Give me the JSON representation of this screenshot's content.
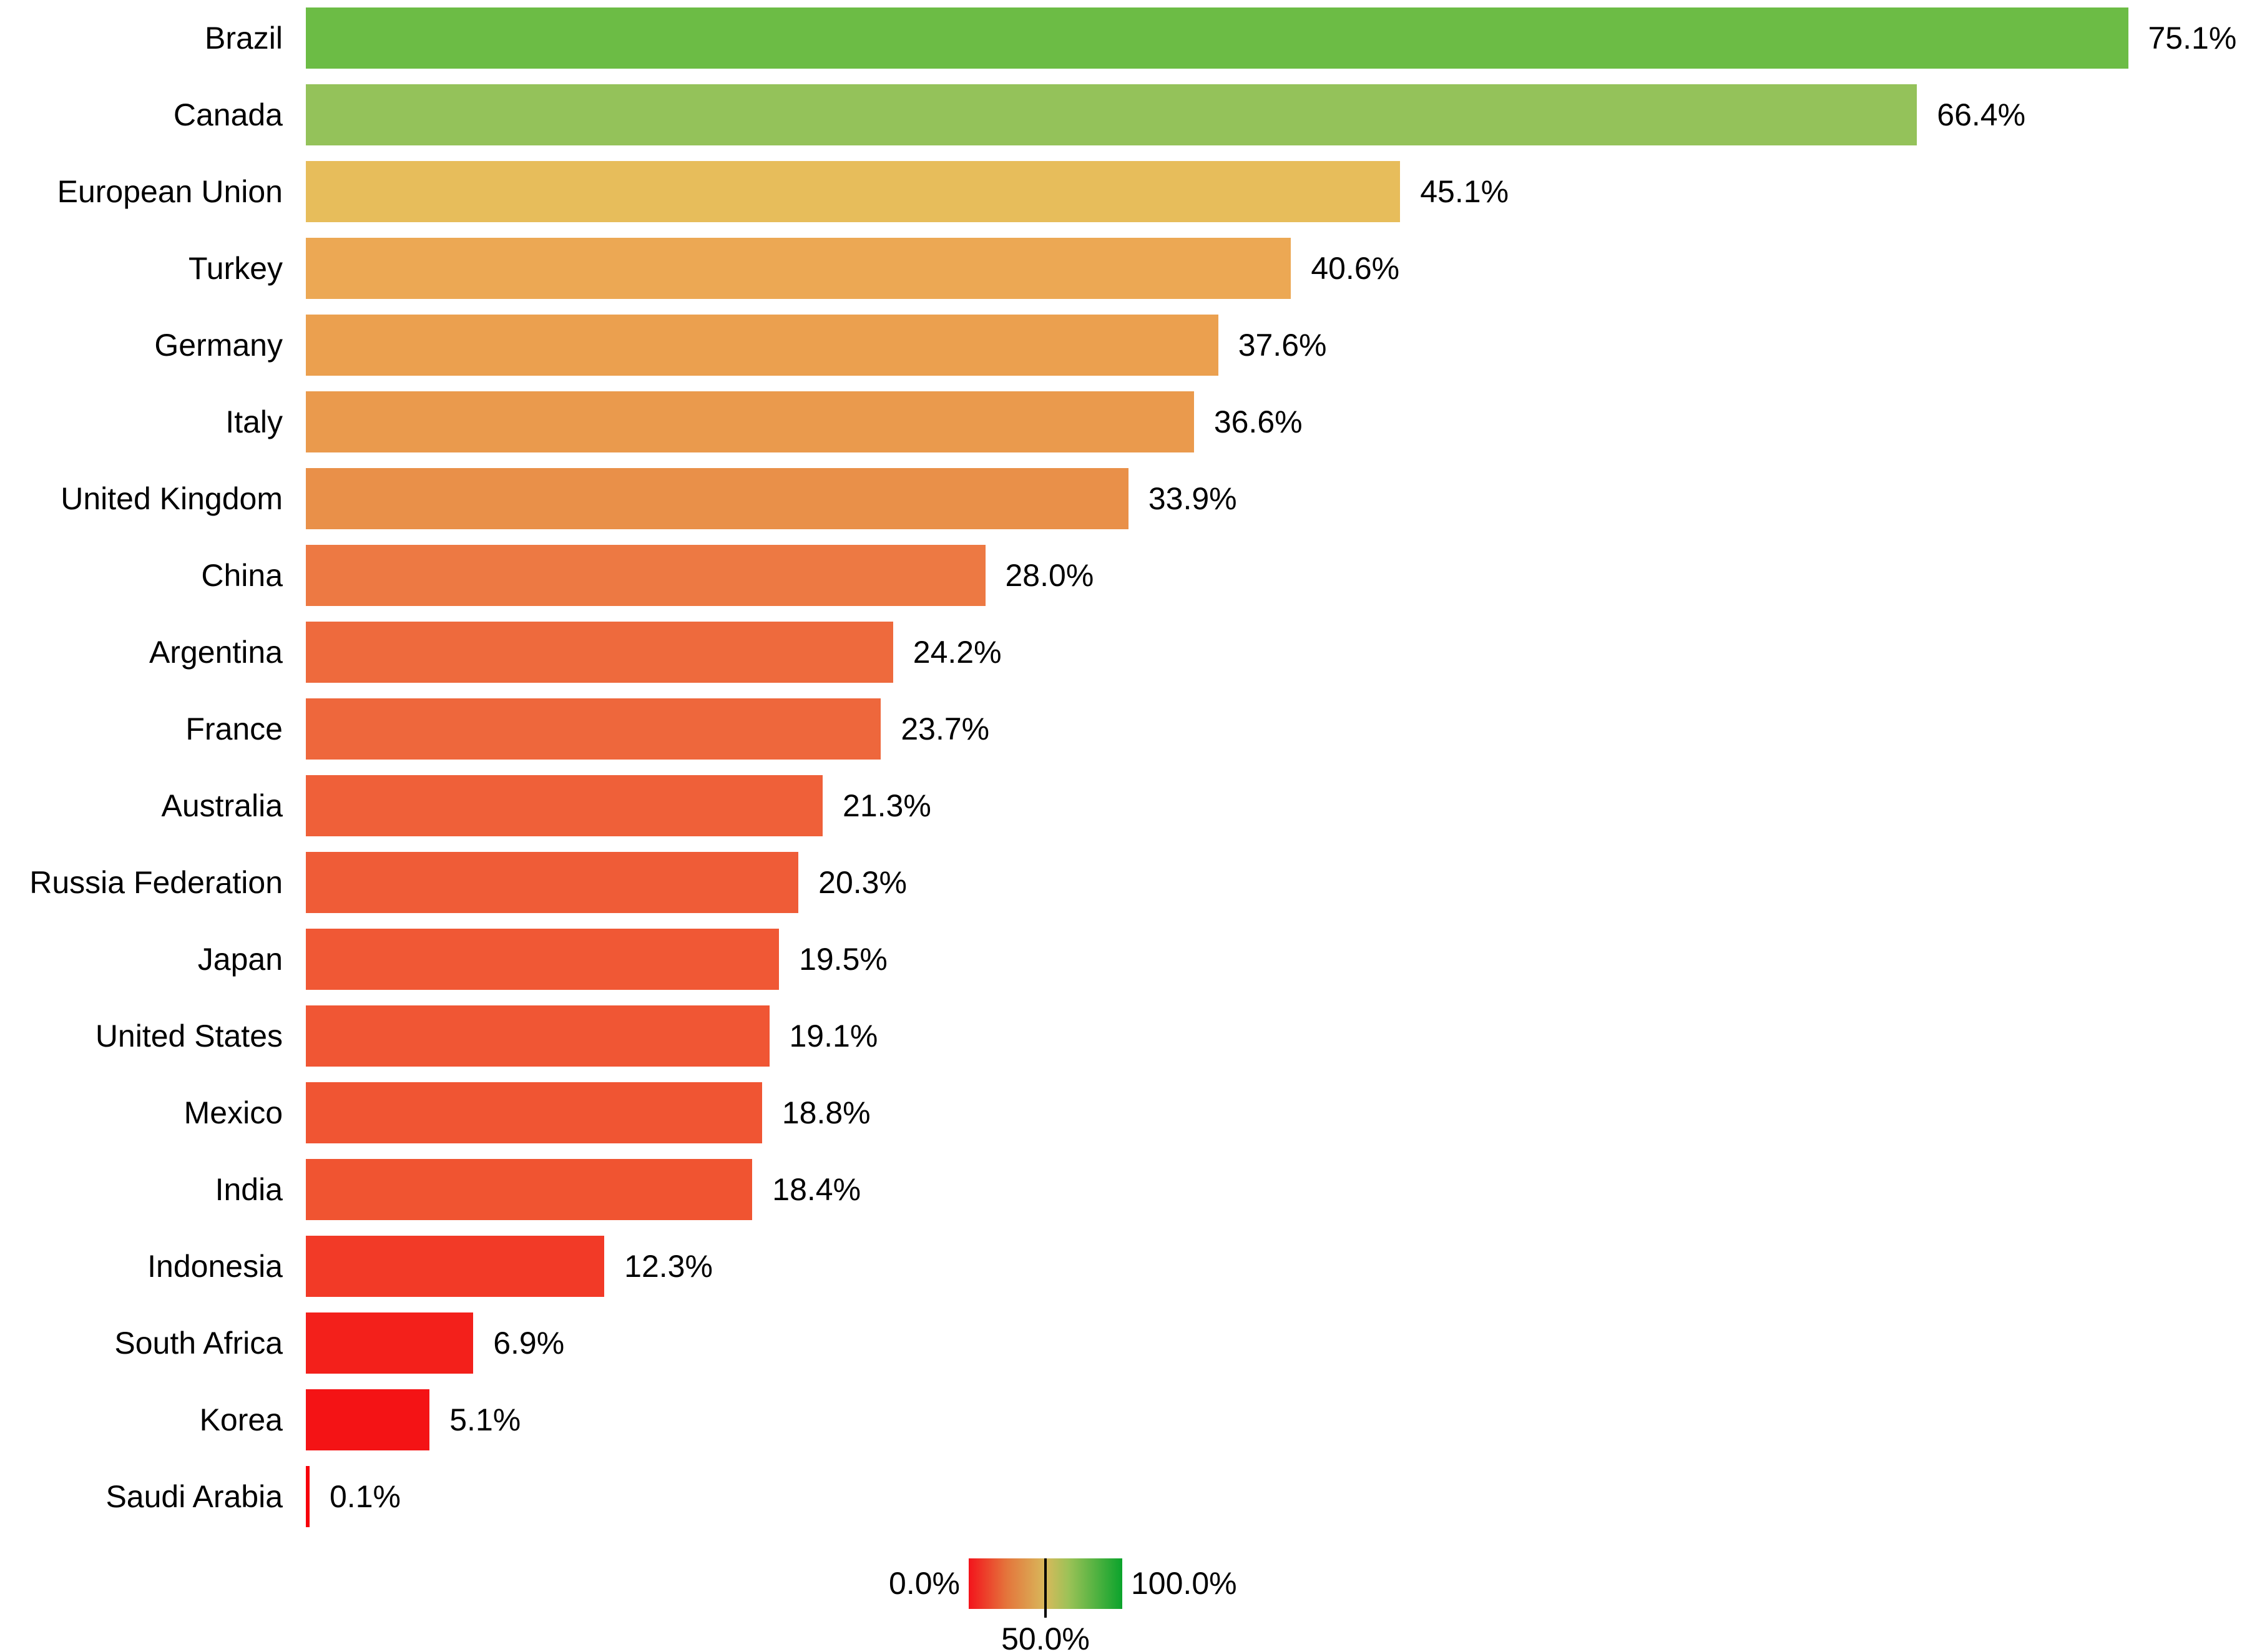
{
  "chart_data": {
    "type": "bar",
    "orientation": "horizontal",
    "title": "",
    "xlabel": "",
    "ylabel": "",
    "xlim": [
      0,
      80
    ],
    "grid": false,
    "categories": [
      "Brazil",
      "Canada",
      "European Union",
      "Turkey",
      "Germany",
      "Italy",
      "United Kingdom",
      "China",
      "Argentina",
      "France",
      "Australia",
      "Russia Federation",
      "Japan",
      "United States",
      "Mexico",
      "India",
      "Indonesia",
      "South Africa",
      "Korea",
      "Saudi Arabia"
    ],
    "values": [
      75.1,
      66.4,
      45.1,
      40.6,
      37.6,
      36.6,
      33.9,
      28.0,
      24.2,
      23.7,
      21.3,
      20.3,
      19.5,
      19.1,
      18.8,
      18.4,
      12.3,
      6.9,
      5.1,
      0.1
    ],
    "value_labels": [
      "75.1%",
      "66.4%",
      "45.1%",
      "40.6%",
      "37.6%",
      "36.6%",
      "33.9%",
      "28.0%",
      "24.2%",
      "23.7%",
      "21.3%",
      "20.3%",
      "19.5%",
      "19.1%",
      "18.8%",
      "18.4%",
      "12.3%",
      "6.9%",
      "5.1%",
      "0.1%"
    ],
    "bar_colors": [
      "#6cbc45",
      "#94c25a",
      "#e7bd5b",
      "#eca854",
      "#eba04f",
      "#ea9a4d",
      "#e99049",
      "#ed7943",
      "#ee6a3d",
      "#ee673c",
      "#ef6039",
      "#ef5c37",
      "#f05835",
      "#f05634",
      "#f05533",
      "#f05431",
      "#f23a27",
      "#f3201b",
      "#f41315",
      "#f6010b"
    ],
    "legend": {
      "type": "gradient-colorbar",
      "position": "bottom-center",
      "min_label": "0.0%",
      "mid_label": "50.0%",
      "max_label": "100.0%",
      "tick_color": "#000000",
      "gradient_stops": [
        {
          "color": "#f3141c",
          "pos": 0
        },
        {
          "color": "#e4763c",
          "pos": 25
        },
        {
          "color": "#d8b95b",
          "pos": 50
        },
        {
          "color": "#9cc257",
          "pos": 65
        },
        {
          "color": "#0ba32c",
          "pos": 100
        }
      ]
    }
  }
}
